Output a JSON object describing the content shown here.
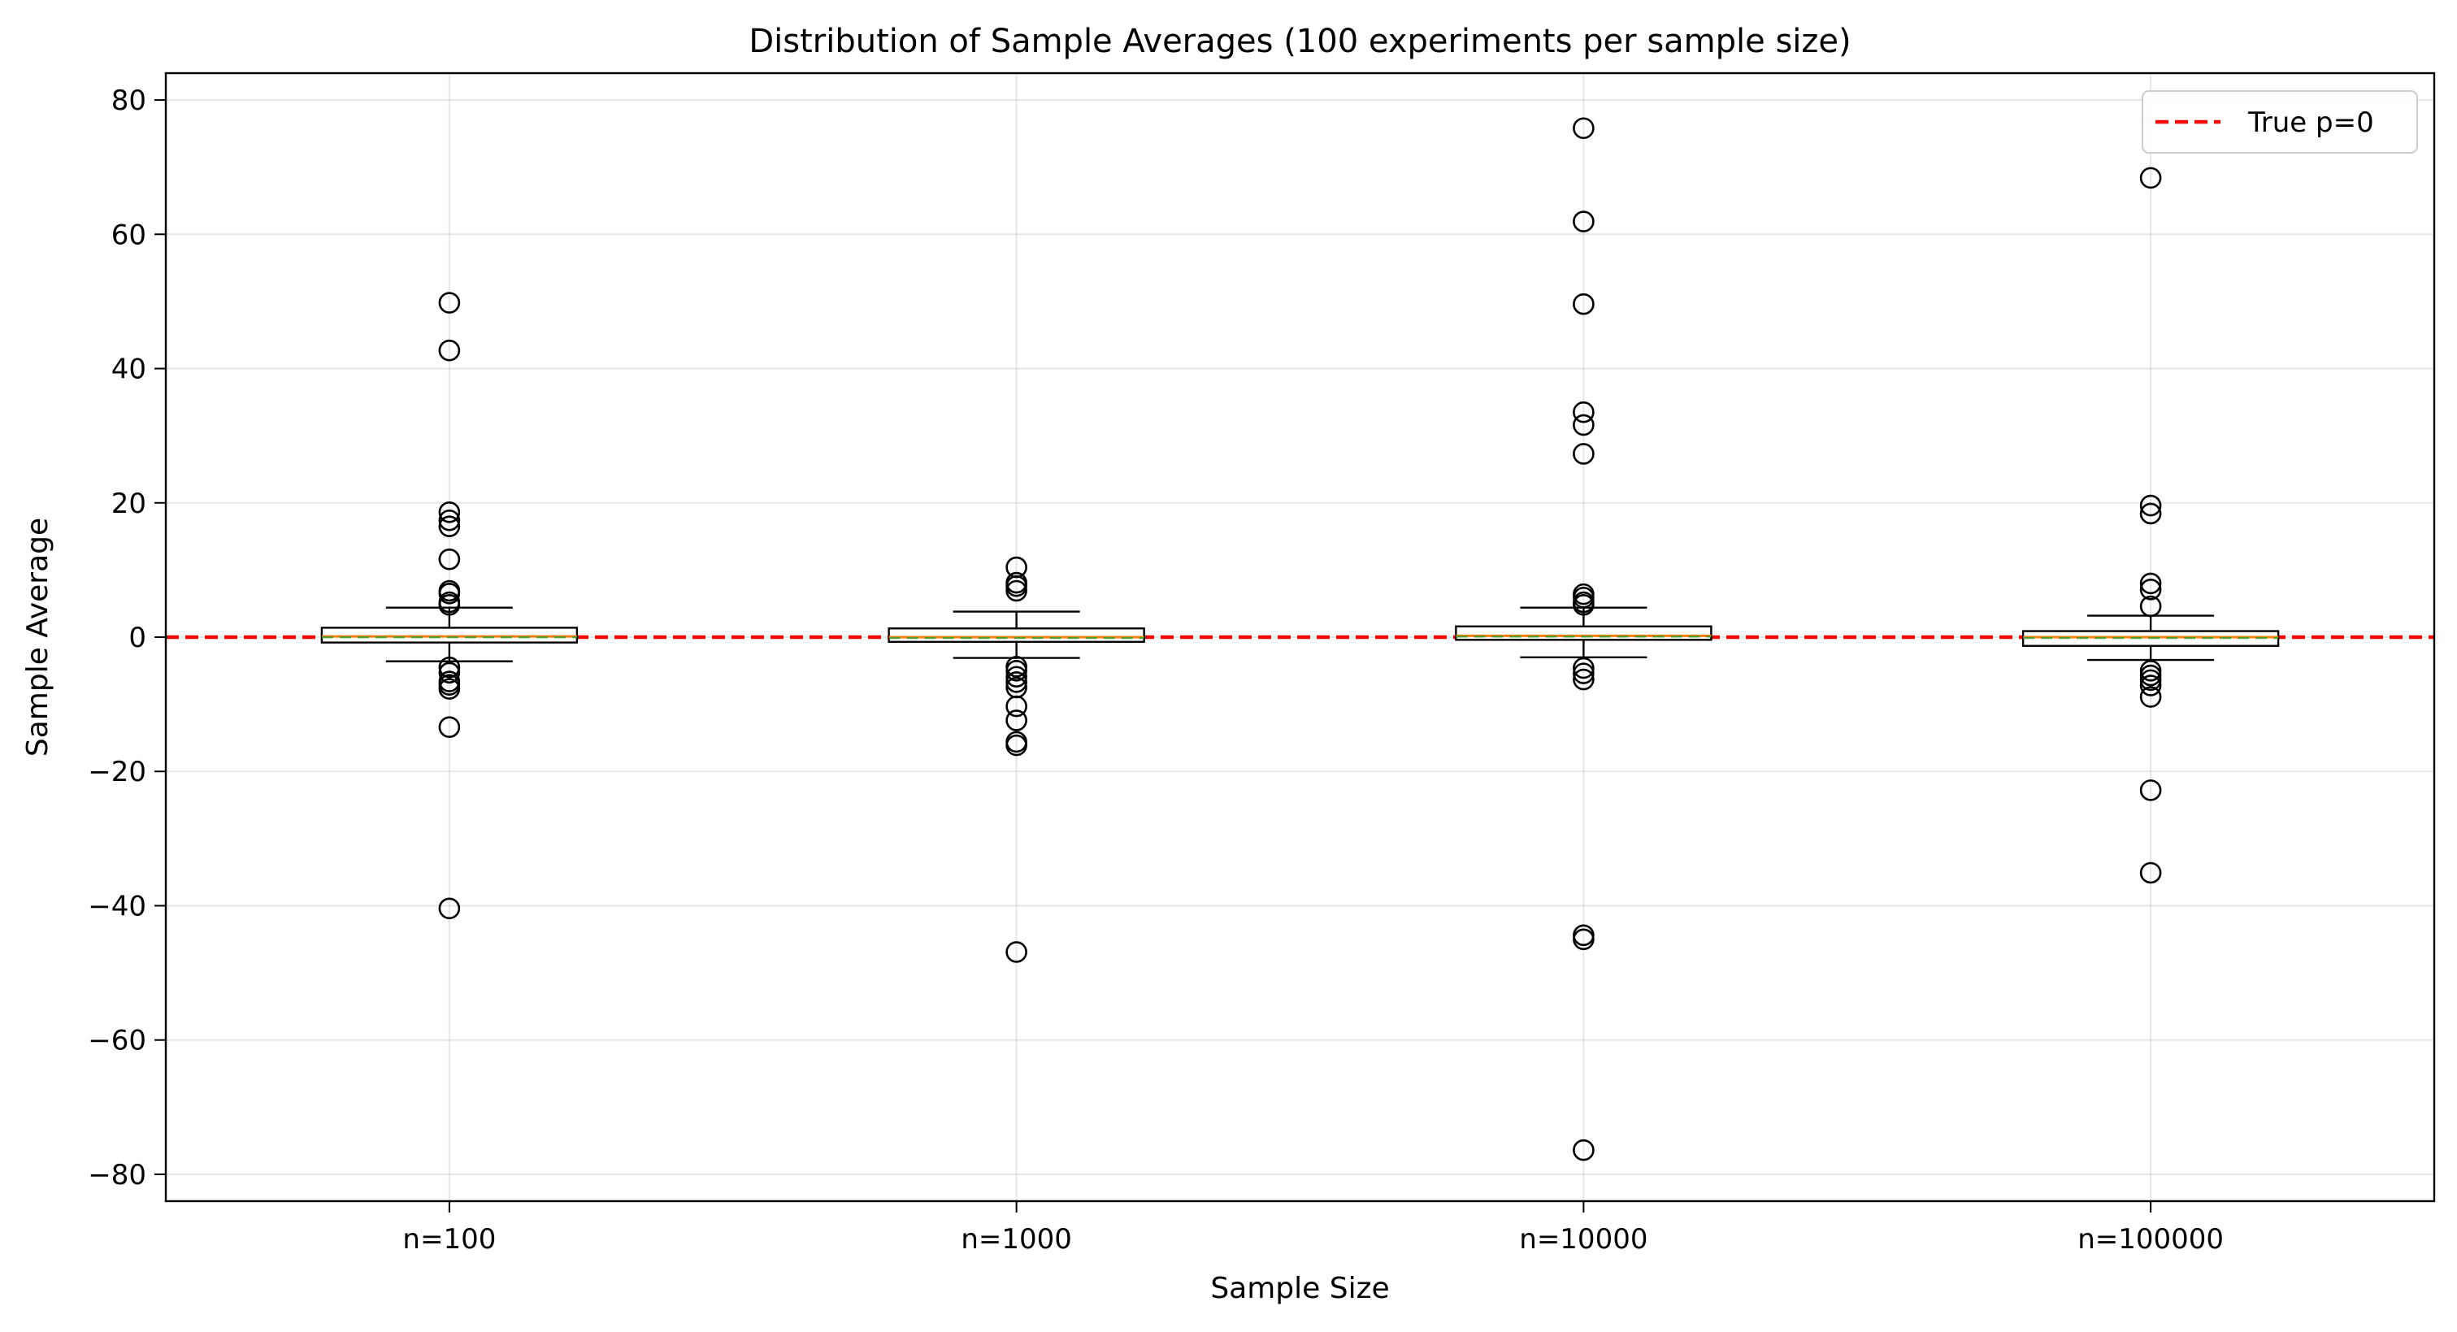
{
  "chart_data": {
    "type": "box",
    "title": "Distribution of Sample Averages (100 experiments per sample size)",
    "xlabel": "Sample Size",
    "ylabel": "Sample Average",
    "ylim": [
      -84,
      84
    ],
    "yticks": [
      -80,
      -60,
      -40,
      -20,
      0,
      20,
      40,
      60,
      80
    ],
    "ytick_labels": [
      "−80",
      "−60",
      "−40",
      "−20",
      "0",
      "20",
      "40",
      "60",
      "80"
    ],
    "grid": true,
    "legend_position": "top-right",
    "reference_line": {
      "value": 0,
      "label": "True p=0",
      "color": "#ff0000",
      "style": "dashed"
    },
    "median_color": "#ff7f0e",
    "mean_color": "#2ca02c",
    "categories": [
      "n=100",
      "n=1000",
      "n=10000",
      "n=100000"
    ],
    "boxes": [
      {
        "label": "n=100",
        "q1": -0.8,
        "median": 0.1,
        "q3": 1.4,
        "whisker_low": -3.6,
        "whisker_high": 4.4,
        "fliers": [
          49.8,
          42.7,
          18.6,
          17.4,
          16.5,
          11.6,
          6.9,
          6.5,
          5.2,
          4.8,
          -4.5,
          -5.3,
          -6.6,
          -7.1,
          -7.7,
          -13.4,
          -40.4
        ]
      },
      {
        "label": "n=1000",
        "q1": -0.7,
        "median": 0.0,
        "q3": 1.3,
        "whisker_low": -3.1,
        "whisker_high": 3.8,
        "fliers": [
          10.4,
          8.1,
          7.6,
          6.9,
          -4.4,
          -5.0,
          -5.9,
          -6.7,
          -7.5,
          -10.3,
          -12.4,
          -15.6,
          -16.1,
          -46.9
        ]
      },
      {
        "label": "n=10000",
        "q1": -0.4,
        "median": 0.2,
        "q3": 1.6,
        "whisker_low": -3.0,
        "whisker_high": 4.4,
        "fliers": [
          75.8,
          61.9,
          49.6,
          33.5,
          31.6,
          27.3,
          6.4,
          5.9,
          5.2,
          4.8,
          -4.6,
          -5.4,
          -6.3,
          -44.4,
          -45.0,
          -76.4
        ]
      },
      {
        "label": "n=100000",
        "q1": -1.3,
        "median": 0.0,
        "q3": 0.9,
        "whisker_low": -3.4,
        "whisker_high": 3.2,
        "fliers": [
          68.4,
          19.6,
          18.4,
          8.0,
          7.1,
          4.6,
          -5.0,
          -5.7,
          -6.4,
          -7.2,
          -8.9,
          -22.8,
          -35.1
        ]
      }
    ]
  }
}
